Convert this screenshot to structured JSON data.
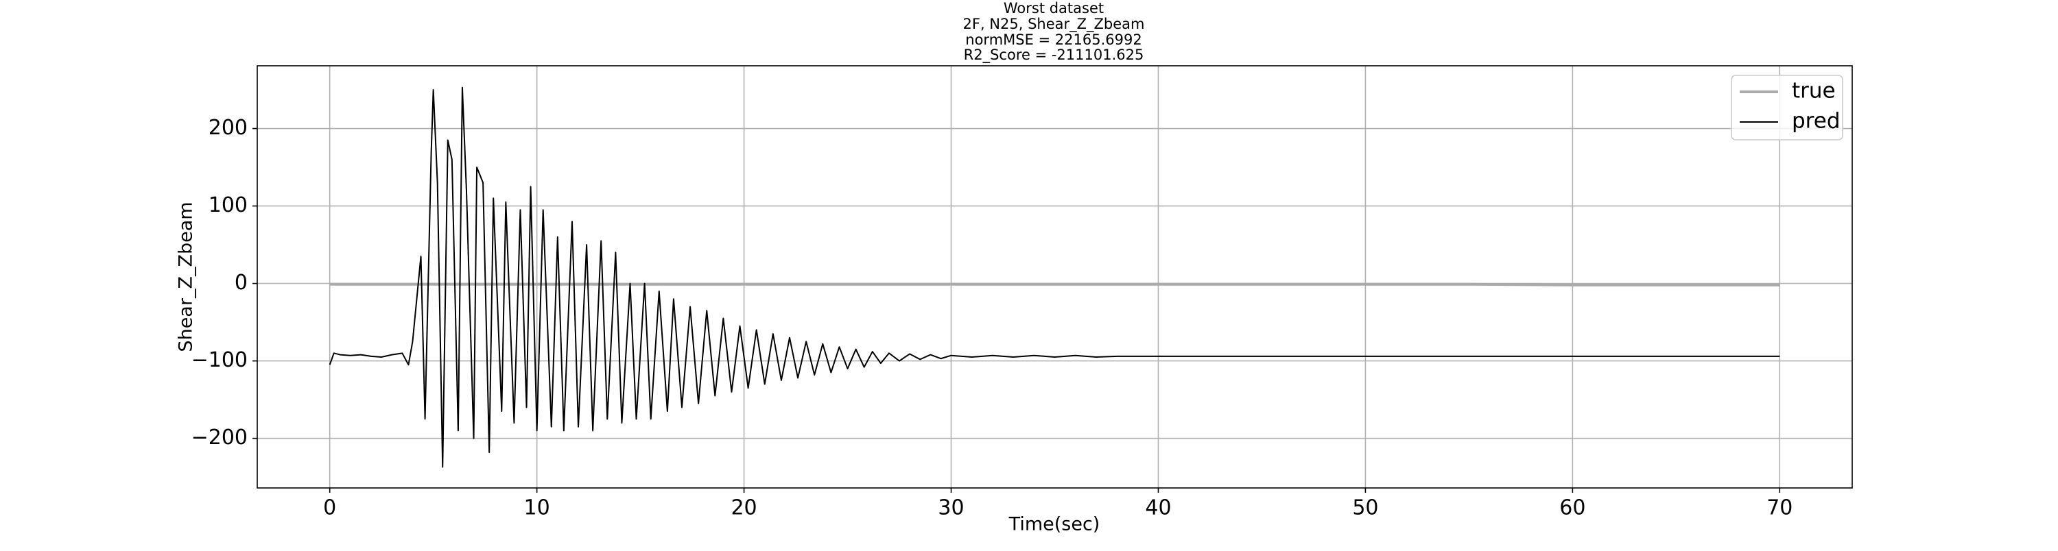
{
  "chart_data": {
    "type": "line",
    "title": [
      "Worst dataset",
      "2F, N25, Shear_Z_Zbeam",
      "normMSE = 22165.6992",
      "R2_Score = -211101.625"
    ],
    "xlabel": "Time(sec)",
    "ylabel": "Shear_Z_Zbeam",
    "x": [
      0,
      0.2,
      0.5,
      1,
      1.5,
      2,
      2.5,
      3,
      3.5,
      3.8,
      4.0,
      4.2,
      4.4,
      4.6,
      4.9,
      5.0,
      5.2,
      5.45,
      5.7,
      5.9,
      6.2,
      6.4,
      6.6,
      6.95,
      7.1,
      7.4,
      7.7,
      7.9,
      8.3,
      8.5,
      8.9,
      9.2,
      9.5,
      9.7,
      10.0,
      10.3,
      10.7,
      11.0,
      11.3,
      11.7,
      12.0,
      12.4,
      12.7,
      13.1,
      13.4,
      13.8,
      14.1,
      14.5,
      14.8,
      15.2,
      15.5,
      15.9,
      16.3,
      16.6,
      17.0,
      17.4,
      17.8,
      18.2,
      18.6,
      19.0,
      19.4,
      19.8,
      20.2,
      20.6,
      21.0,
      21.4,
      21.8,
      22.2,
      22.6,
      23.0,
      23.4,
      23.8,
      24.2,
      24.6,
      25.0,
      25.4,
      25.8,
      26.2,
      26.6,
      27.0,
      27.5,
      28,
      28.5,
      29,
      29.5,
      30,
      31,
      32,
      33,
      34,
      35,
      36,
      37,
      38,
      40,
      45,
      50,
      55,
      60,
      65,
      70
    ],
    "series": [
      {
        "name": "true",
        "color": "#aaaaaa",
        "width": 4,
        "values": [
          -1,
          -1,
          -1,
          -1,
          -1,
          -1,
          -1,
          -1,
          -1,
          -1,
          -1,
          -1,
          -1,
          -1,
          -1,
          -1,
          -1,
          -1,
          -1,
          -1,
          -1,
          -1,
          -1,
          -1,
          -1,
          -1,
          -1,
          -1,
          -1,
          -1,
          -1,
          -1,
          -1,
          -1,
          -1,
          -1,
          -1,
          -1,
          -1,
          -1,
          -1,
          -1,
          -1,
          -1,
          -1,
          -1,
          -1,
          -1,
          -1,
          -1,
          -1,
          -1,
          -1,
          -1,
          -1,
          -1,
          -1,
          -1,
          -1,
          -1,
          -1,
          -1,
          -1,
          -1,
          -1,
          -1,
          -1,
          -1,
          -1,
          -1,
          -1,
          -1,
          -1,
          -1,
          -1,
          -1,
          -1,
          -1,
          -1,
          -1,
          -1,
          -1,
          -1,
          -1,
          -1,
          -1,
          -1,
          -1,
          -1,
          -1,
          -1,
          -1,
          -1,
          -1,
          -1,
          -1,
          -1,
          -1,
          -2,
          -2,
          -2
        ]
      },
      {
        "name": "pred",
        "color": "#000000",
        "width": 2,
        "values": [
          -105,
          -90,
          -92,
          -93,
          -92,
          -94,
          -95,
          -92,
          -90,
          -105,
          -75,
          -20,
          35,
          -175,
          170,
          250,
          130,
          -237,
          185,
          160,
          -190,
          253,
          120,
          -200,
          150,
          130,
          -218,
          110,
          -165,
          105,
          -180,
          95,
          -160,
          125,
          -190,
          95,
          -185,
          60,
          -190,
          80,
          -185,
          50,
          -190,
          55,
          -175,
          40,
          -180,
          0,
          -175,
          0,
          -175,
          -10,
          -165,
          -20,
          -160,
          -30,
          -155,
          -35,
          -145,
          -45,
          -140,
          -55,
          -135,
          -60,
          -130,
          -65,
          -125,
          -70,
          -122,
          -75,
          -118,
          -78,
          -115,
          -82,
          -110,
          -85,
          -108,
          -88,
          -103,
          -90,
          -100,
          -91,
          -98,
          -92,
          -97,
          -93,
          -95,
          -93,
          -95,
          -93,
          -95,
          -93,
          -95,
          -94,
          -94,
          -94,
          -94,
          -94,
          -94,
          -94,
          -94
        ]
      }
    ],
    "xlim": [
      -3.5,
      73.5
    ],
    "ylim": [
      -264,
      281
    ],
    "xticks": [
      0,
      10,
      20,
      30,
      40,
      50,
      60,
      70
    ],
    "yticks": [
      {
        "value": -200,
        "label": "−200"
      },
      {
        "value": -100,
        "label": "−100"
      },
      0,
      100,
      200
    ],
    "grid": true,
    "legend": "upper right"
  }
}
